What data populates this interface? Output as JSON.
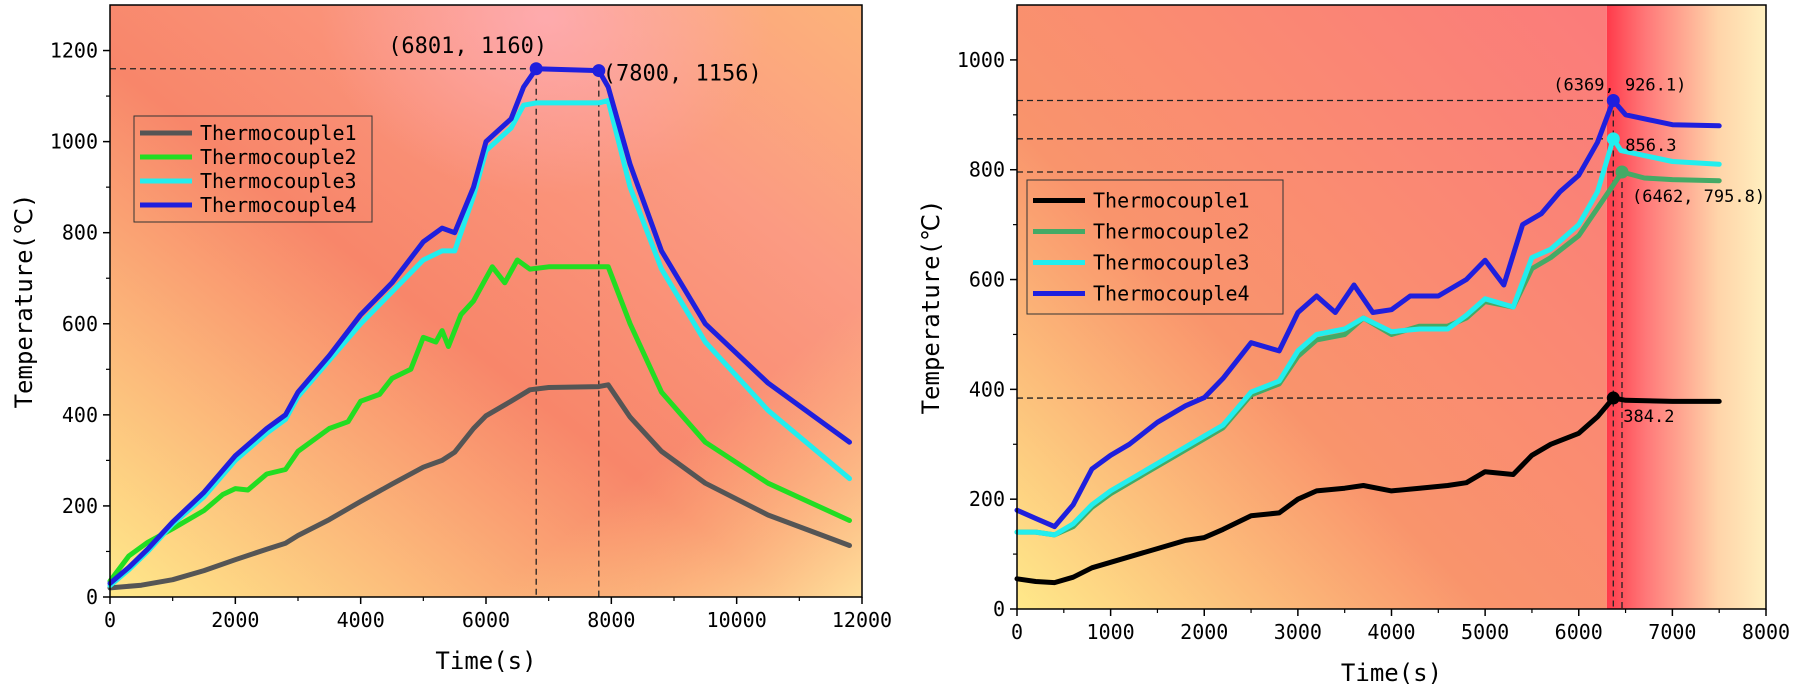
{
  "chart_data": [
    {
      "type": "line",
      "xlabel": "Time(s)",
      "ylabel": "Temperature(℃)",
      "xlim": [
        0,
        12000
      ],
      "ylim": [
        0,
        1300
      ],
      "xticks": [
        0,
        2000,
        4000,
        6000,
        8000,
        10000,
        12000
      ],
      "yticks": [
        0,
        200,
        400,
        600,
        800,
        1000,
        1200
      ],
      "x_tick_labels": [
        "0",
        "2000",
        "4000",
        "6000",
        "8000",
        "10000",
        "12000"
      ],
      "y_tick_labels": [
        "0",
        "200",
        "400",
        "600",
        "800",
        "1000",
        "1200"
      ],
      "legend_position": "upper-left",
      "series": [
        {
          "name": "Thermocouple1",
          "color": "#555555",
          "points": [
            [
              0,
              20
            ],
            [
              500,
              26
            ],
            [
              1000,
              38
            ],
            [
              1500,
              58
            ],
            [
              2000,
              82
            ],
            [
              2500,
              105
            ],
            [
              2800,
              118
            ],
            [
              3000,
              135
            ],
            [
              3500,
              170
            ],
            [
              4000,
              210
            ],
            [
              4500,
              248
            ],
            [
              5000,
              285
            ],
            [
              5300,
              300
            ],
            [
              5500,
              318
            ],
            [
              5800,
              370
            ],
            [
              6000,
              398
            ],
            [
              6400,
              430
            ],
            [
              6700,
              455
            ],
            [
              7000,
              460
            ],
            [
              7800,
              462
            ],
            [
              7950,
              466
            ],
            [
              8300,
              395
            ],
            [
              8800,
              320
            ],
            [
              9500,
              250
            ],
            [
              10500,
              180
            ],
            [
              11800,
              113
            ]
          ]
        },
        {
          "name": "Thermocouple2",
          "color": "#22dd22",
          "points": [
            [
              0,
              35
            ],
            [
              300,
              90
            ],
            [
              600,
              120
            ],
            [
              1000,
              150
            ],
            [
              1500,
              190
            ],
            [
              1800,
              225
            ],
            [
              2000,
              238
            ],
            [
              2200,
              235
            ],
            [
              2500,
              270
            ],
            [
              2800,
              280
            ],
            [
              3000,
              320
            ],
            [
              3300,
              350
            ],
            [
              3500,
              370
            ],
            [
              3800,
              385
            ],
            [
              4000,
              430
            ],
            [
              4300,
              445
            ],
            [
              4500,
              480
            ],
            [
              4800,
              500
            ],
            [
              5000,
              570
            ],
            [
              5200,
              560
            ],
            [
              5300,
              585
            ],
            [
              5400,
              550
            ],
            [
              5600,
              620
            ],
            [
              5800,
              650
            ],
            [
              6000,
              700
            ],
            [
              6100,
              725
            ],
            [
              6300,
              690
            ],
            [
              6500,
              740
            ],
            [
              6700,
              720
            ],
            [
              7000,
              725
            ],
            [
              7800,
              725
            ],
            [
              7950,
              725
            ],
            [
              8300,
              600
            ],
            [
              8800,
              450
            ],
            [
              9500,
              340
            ],
            [
              10500,
              250
            ],
            [
              11800,
              168
            ]
          ]
        },
        {
          "name": "Thermocouple3",
          "color": "#22eeee",
          "points": [
            [
              0,
              25
            ],
            [
              300,
              60
            ],
            [
              600,
              100
            ],
            [
              1000,
              160
            ],
            [
              1500,
              220
            ],
            [
              2000,
              300
            ],
            [
              2500,
              360
            ],
            [
              2800,
              390
            ],
            [
              3000,
              440
            ],
            [
              3500,
              520
            ],
            [
              4000,
              600
            ],
            [
              4500,
              670
            ],
            [
              5000,
              740
            ],
            [
              5300,
              760
            ],
            [
              5500,
              760
            ],
            [
              5800,
              880
            ],
            [
              6000,
              980
            ],
            [
              6400,
              1030
            ],
            [
              6600,
              1080
            ],
            [
              6800,
              1085
            ],
            [
              7800,
              1085
            ],
            [
              7950,
              1090
            ],
            [
              8300,
              900
            ],
            [
              8800,
              720
            ],
            [
              9500,
              560
            ],
            [
              10500,
              410
            ],
            [
              11800,
              260
            ]
          ]
        },
        {
          "name": "Thermocouple4",
          "color": "#1f1fdd",
          "points": [
            [
              0,
              30
            ],
            [
              300,
              65
            ],
            [
              600,
              105
            ],
            [
              1000,
              165
            ],
            [
              1500,
              230
            ],
            [
              2000,
              310
            ],
            [
              2500,
              370
            ],
            [
              2800,
              400
            ],
            [
              3000,
              450
            ],
            [
              3500,
              530
            ],
            [
              4000,
              620
            ],
            [
              4500,
              690
            ],
            [
              5000,
              780
            ],
            [
              5300,
              810
            ],
            [
              5500,
              800
            ],
            [
              5800,
              900
            ],
            [
              6000,
              1000
            ],
            [
              6400,
              1050
            ],
            [
              6600,
              1120
            ],
            [
              6801,
              1160
            ],
            [
              7800,
              1156
            ],
            [
              7950,
              1120
            ],
            [
              8300,
              950
            ],
            [
              8800,
              760
            ],
            [
              9500,
              600
            ],
            [
              10500,
              470
            ],
            [
              11800,
              340
            ]
          ]
        }
      ],
      "annotations": [
        {
          "text": "(6801, 1160)",
          "x": 6801,
          "y": 1160
        },
        {
          "text": "(7800, 1156)",
          "x": 7800,
          "y": 1156
        }
      ]
    },
    {
      "type": "line",
      "xlabel": "Time(s)",
      "ylabel": "Temperature(℃)",
      "xlim": [
        0,
        8000
      ],
      "ylim": [
        0,
        1100
      ],
      "xticks": [
        0,
        1000,
        2000,
        3000,
        4000,
        5000,
        6000,
        7000,
        8000
      ],
      "yticks": [
        0,
        200,
        400,
        600,
        800,
        1000
      ],
      "x_tick_labels": [
        "0",
        "1000",
        "2000",
        "3000",
        "4000",
        "5000",
        "6000",
        "7000",
        "8000"
      ],
      "y_tick_labels": [
        "0",
        "200",
        "400",
        "600",
        "800",
        "1000"
      ],
      "legend_position": "center-left",
      "series": [
        {
          "name": "Thermocouple1",
          "color": "#000000",
          "points": [
            [
              0,
              55
            ],
            [
              200,
              50
            ],
            [
              400,
              48
            ],
            [
              600,
              58
            ],
            [
              800,
              75
            ],
            [
              1000,
              85
            ],
            [
              1200,
              95
            ],
            [
              1500,
              110
            ],
            [
              1800,
              125
            ],
            [
              2000,
              130
            ],
            [
              2200,
              145
            ],
            [
              2500,
              170
            ],
            [
              2800,
              175
            ],
            [
              3000,
              200
            ],
            [
              3200,
              215
            ],
            [
              3500,
              220
            ],
            [
              3700,
              225
            ],
            [
              4000,
              215
            ],
            [
              4300,
              220
            ],
            [
              4600,
              225
            ],
            [
              4800,
              230
            ],
            [
              5000,
              250
            ],
            [
              5300,
              245
            ],
            [
              5500,
              280
            ],
            [
              5700,
              300
            ],
            [
              6000,
              320
            ],
            [
              6200,
              350
            ],
            [
              6369,
              384.2
            ],
            [
              6500,
              380
            ],
            [
              7000,
              378
            ],
            [
              7500,
              378
            ]
          ]
        },
        {
          "name": "Thermocouple2",
          "color": "#44aa66",
          "points": [
            [
              0,
              140
            ],
            [
              200,
              140
            ],
            [
              400,
              135
            ],
            [
              600,
              150
            ],
            [
              800,
              185
            ],
            [
              1000,
              210
            ],
            [
              1200,
              230
            ],
            [
              1500,
              260
            ],
            [
              1800,
              290
            ],
            [
              2000,
              310
            ],
            [
              2200,
              330
            ],
            [
              2500,
              390
            ],
            [
              2800,
              410
            ],
            [
              3000,
              460
            ],
            [
              3200,
              490
            ],
            [
              3500,
              500
            ],
            [
              3700,
              530
            ],
            [
              4000,
              500
            ],
            [
              4300,
              515
            ],
            [
              4600,
              515
            ],
            [
              4800,
              530
            ],
            [
              5000,
              560
            ],
            [
              5300,
              550
            ],
            [
              5500,
              620
            ],
            [
              5700,
              640
            ],
            [
              6000,
              680
            ],
            [
              6200,
              730
            ],
            [
              6400,
              780
            ],
            [
              6462,
              795.8
            ],
            [
              6700,
              785
            ],
            [
              7000,
              782
            ],
            [
              7500,
              780
            ]
          ]
        },
        {
          "name": "Thermocouple3",
          "color": "#22eeee",
          "points": [
            [
              0,
              140
            ],
            [
              200,
              140
            ],
            [
              400,
              135
            ],
            [
              600,
              155
            ],
            [
              800,
              190
            ],
            [
              1000,
              215
            ],
            [
              1200,
              235
            ],
            [
              1500,
              265
            ],
            [
              1800,
              295
            ],
            [
              2000,
              315
            ],
            [
              2200,
              335
            ],
            [
              2500,
              395
            ],
            [
              2800,
              415
            ],
            [
              3000,
              470
            ],
            [
              3200,
              500
            ],
            [
              3500,
              510
            ],
            [
              3700,
              530
            ],
            [
              4000,
              505
            ],
            [
              4300,
              510
            ],
            [
              4600,
              510
            ],
            [
              4800,
              535
            ],
            [
              5000,
              565
            ],
            [
              5300,
              550
            ],
            [
              5500,
              640
            ],
            [
              5700,
              655
            ],
            [
              6000,
              700
            ],
            [
              6200,
              760
            ],
            [
              6369,
              856.3
            ],
            [
              6450,
              835
            ],
            [
              7000,
              815
            ],
            [
              7500,
              810
            ]
          ]
        },
        {
          "name": "Thermocouple4",
          "color": "#1f1fdd",
          "points": [
            [
              0,
              180
            ],
            [
              200,
              165
            ],
            [
              400,
              150
            ],
            [
              600,
              190
            ],
            [
              800,
              255
            ],
            [
              1000,
              280
            ],
            [
              1200,
              300
            ],
            [
              1500,
              340
            ],
            [
              1800,
              370
            ],
            [
              2000,
              385
            ],
            [
              2200,
              420
            ],
            [
              2500,
              485
            ],
            [
              2800,
              470
            ],
            [
              3000,
              540
            ],
            [
              3200,
              570
            ],
            [
              3400,
              540
            ],
            [
              3600,
              590
            ],
            [
              3800,
              540
            ],
            [
              4000,
              545
            ],
            [
              4200,
              570
            ],
            [
              4500,
              570
            ],
            [
              4800,
              600
            ],
            [
              5000,
              635
            ],
            [
              5200,
              590
            ],
            [
              5400,
              700
            ],
            [
              5600,
              720
            ],
            [
              5800,
              760
            ],
            [
              6000,
              790
            ],
            [
              6200,
              850
            ],
            [
              6369,
              926.1
            ],
            [
              6500,
              900
            ],
            [
              7000,
              882
            ],
            [
              7500,
              880
            ]
          ]
        }
      ],
      "annotations": [
        {
          "text": "(6369, 926.1)",
          "x": 6369,
          "y": 926.1
        },
        {
          "text": "856.3",
          "x": 6369,
          "y": 856.3
        },
        {
          "text": "(6462, 795.8)",
          "x": 6462,
          "y": 795.8
        },
        {
          "text": "384.2",
          "x": 6369,
          "y": 384.2
        }
      ]
    }
  ]
}
